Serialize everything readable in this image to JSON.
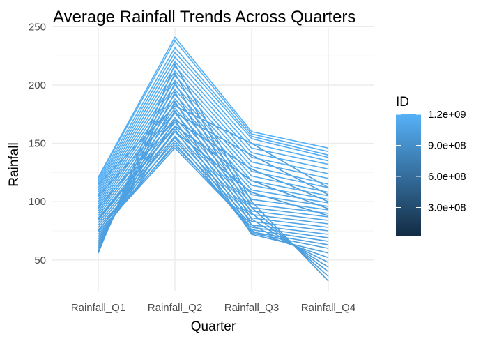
{
  "chart_data": {
    "type": "line",
    "title": "Average Rainfall Trends Across Quarters",
    "xlabel": "Quarter",
    "ylabel": "Rainfall",
    "categories": [
      "Rainfall_Q1",
      "Rainfall_Q2",
      "Rainfall_Q3",
      "Rainfall_Q4"
    ],
    "ylim": [
      23,
      249
    ],
    "yticks": [
      50,
      100,
      150,
      200,
      250
    ],
    "grid": true,
    "legend": {
      "title": "ID",
      "position": "right",
      "type": "colorbar",
      "range": [
        20000000,
        1200000000
      ],
      "ticks": [
        {
          "value": 300000000,
          "label": "3.0e+08"
        },
        {
          "value": 600000000,
          "label": "6.0e+08"
        },
        {
          "value": 900000000,
          "label": "9.0e+08"
        },
        {
          "value": 1200000000,
          "label": "1.2e+09"
        }
      ],
      "color_low": "#132b43",
      "color_high": "#56b1f7"
    },
    "series": [
      {
        "id": 1190000000,
        "values": [
          121,
          241,
          160,
          146
        ]
      },
      {
        "id": 1185000000,
        "values": [
          120,
          238,
          158,
          143
        ]
      },
      {
        "id": 1180000000,
        "values": [
          118,
          232,
          156,
          140
        ]
      },
      {
        "id": 1175000000,
        "values": [
          116,
          228,
          154,
          138
        ]
      },
      {
        "id": 1170000000,
        "values": [
          114,
          224,
          150,
          135
        ]
      },
      {
        "id": 1165000000,
        "values": [
          112,
          220,
          146,
          132
        ]
      },
      {
        "id": 1160000000,
        "values": [
          110,
          216,
          142,
          128
        ]
      },
      {
        "id": 1155000000,
        "values": [
          108,
          212,
          138,
          124
        ]
      },
      {
        "id": 1150000000,
        "values": [
          106,
          208,
          134,
          120
        ]
      },
      {
        "id": 1145000000,
        "values": [
          104,
          204,
          130,
          115
        ]
      },
      {
        "id": 1140000000,
        "values": [
          102,
          200,
          126,
          112
        ]
      },
      {
        "id": 1135000000,
        "values": [
          100,
          196,
          122,
          108
        ]
      },
      {
        "id": 1130000000,
        "values": [
          98,
          192,
          118,
          105
        ]
      },
      {
        "id": 1125000000,
        "values": [
          96,
          188,
          114,
          102
        ]
      },
      {
        "id": 1120000000,
        "values": [
          94,
          184,
          110,
          99
        ]
      },
      {
        "id": 1115000000,
        "values": [
          92,
          180,
          106,
          96
        ]
      },
      {
        "id": 1110000000,
        "values": [
          90,
          176,
          102,
          93
        ]
      },
      {
        "id": 1105000000,
        "values": [
          88,
          172,
          98,
          90
        ]
      },
      {
        "id": 1100000000,
        "values": [
          86,
          168,
          95,
          87
        ]
      },
      {
        "id": 1095000000,
        "values": [
          84,
          164,
          92,
          84
        ]
      },
      {
        "id": 1090000000,
        "values": [
          82,
          160,
          89,
          81
        ]
      },
      {
        "id": 1085000000,
        "values": [
          80,
          156,
          86,
          78
        ]
      },
      {
        "id": 1080000000,
        "values": [
          78,
          152,
          83,
          75
        ]
      },
      {
        "id": 1075000000,
        "values": [
          76,
          148,
          80,
          72
        ]
      },
      {
        "id": 1070000000,
        "values": [
          74,
          146,
          78,
          69
        ]
      },
      {
        "id": 1065000000,
        "values": [
          72,
          150,
          76,
          66
        ]
      },
      {
        "id": 1060000000,
        "values": [
          70,
          155,
          74,
          63
        ]
      },
      {
        "id": 1055000000,
        "values": [
          68,
          162,
          73,
          60
        ]
      },
      {
        "id": 1050000000,
        "values": [
          66,
          170,
          72,
          56
        ]
      },
      {
        "id": 1045000000,
        "values": [
          64,
          178,
          75,
          52
        ]
      },
      {
        "id": 1040000000,
        "values": [
          62,
          186,
          80,
          48
        ]
      },
      {
        "id": 1035000000,
        "values": [
          60,
          194,
          85,
          44
        ]
      },
      {
        "id": 1030000000,
        "values": [
          58,
          202,
          90,
          40
        ]
      },
      {
        "id": 1025000000,
        "values": [
          57,
          210,
          95,
          36
        ]
      },
      {
        "id": 1020000000,
        "values": [
          56,
          218,
          100,
          32
        ]
      },
      {
        "id": 1015000000,
        "values": [
          115,
          182,
          150,
          112
        ]
      },
      {
        "id": 1010000000,
        "values": [
          105,
          176,
          140,
          106
        ]
      },
      {
        "id": 1005000000,
        "values": [
          95,
          170,
          128,
          100
        ]
      },
      {
        "id": 1000000000,
        "values": [
          85,
          165,
          118,
          94
        ]
      },
      {
        "id": 995000000,
        "values": [
          75,
          160,
          108,
          88
        ]
      }
    ]
  }
}
